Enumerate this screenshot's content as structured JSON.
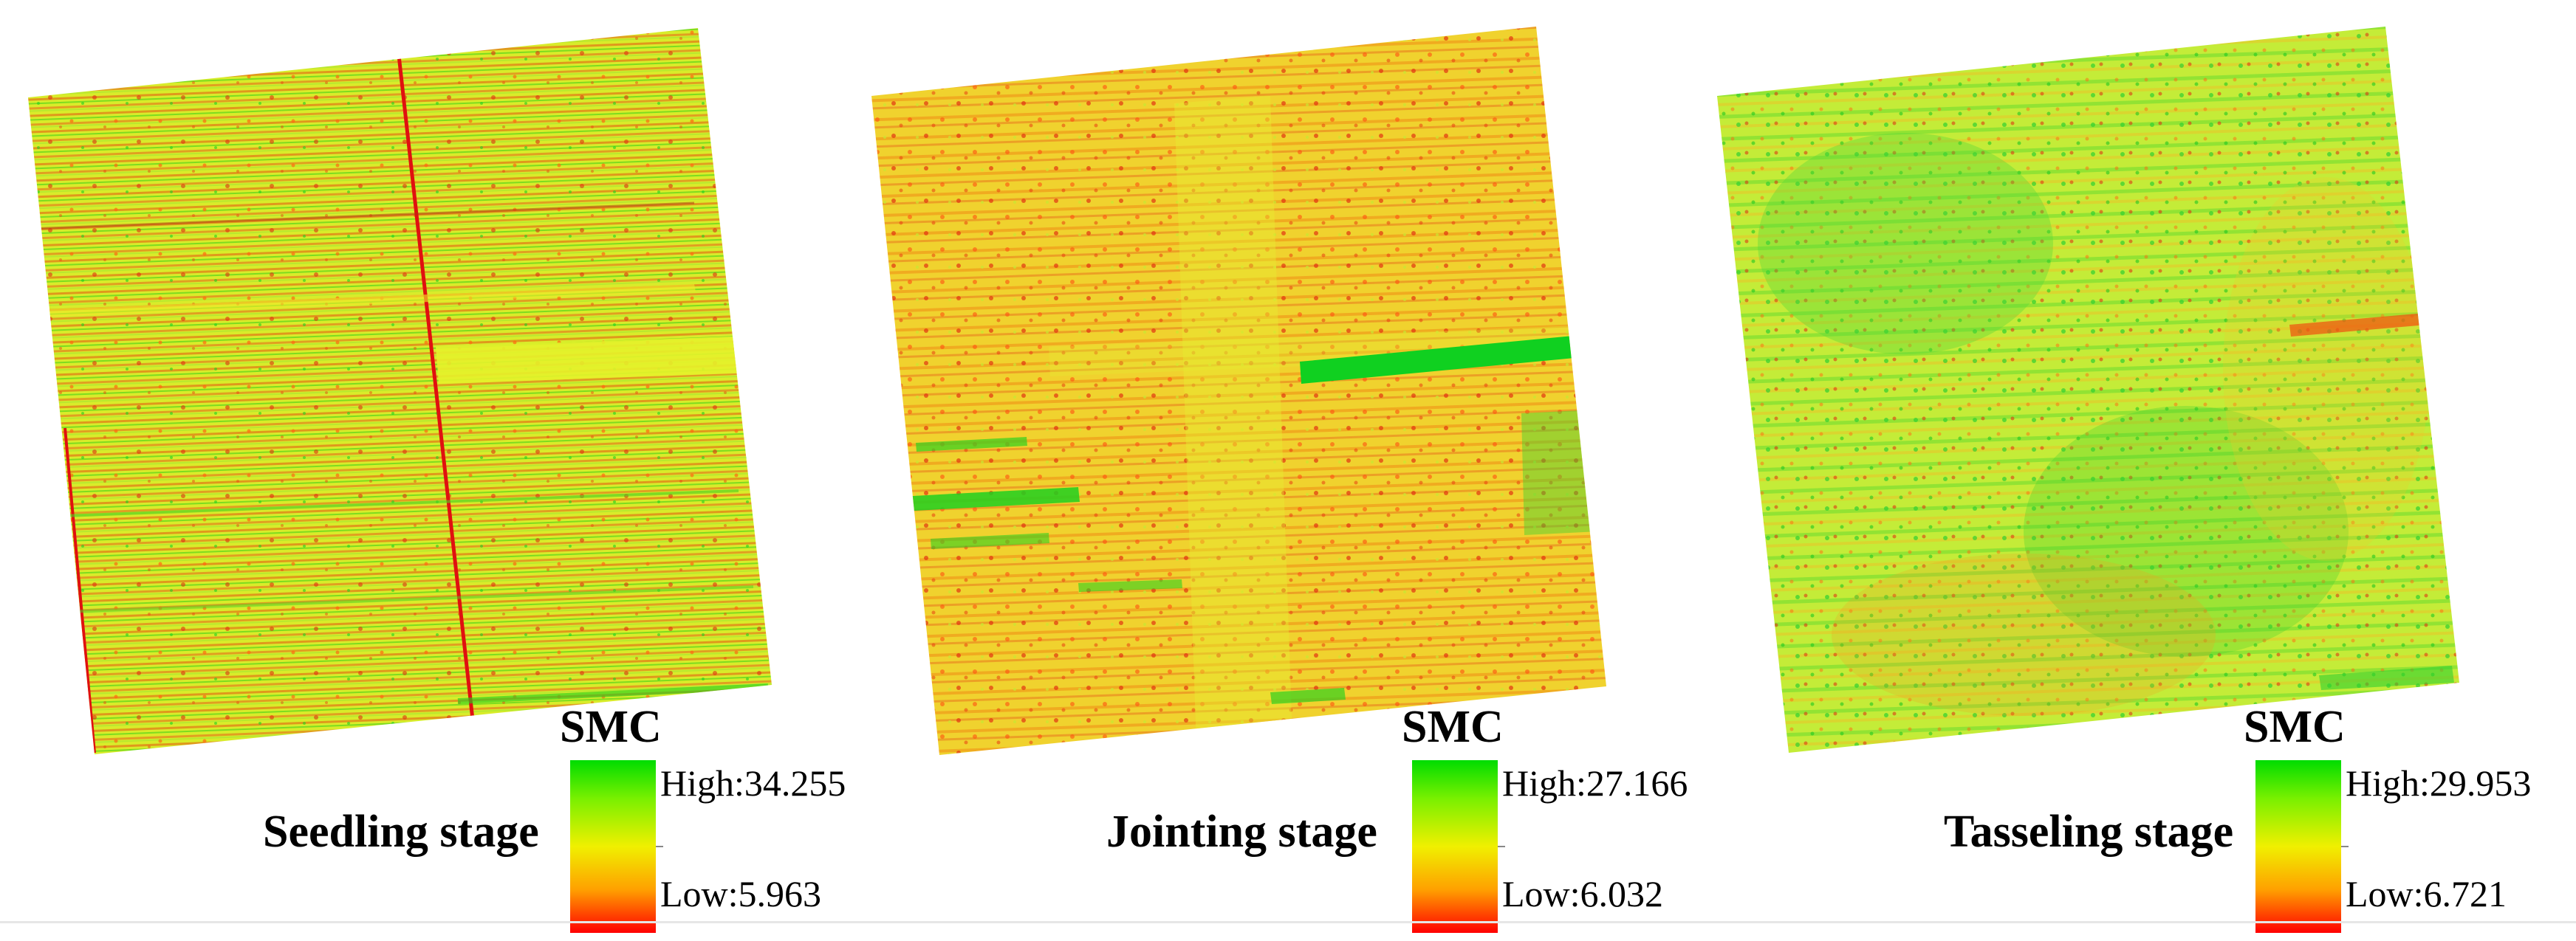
{
  "panels": [
    {
      "stage": "Seedling stage",
      "legend_title": "SMC",
      "high_label": "High:34.255",
      "low_label": "Low:5.963",
      "pattern": "rows",
      "base_color": "#d8ec2a"
    },
    {
      "stage": "Jointing stage",
      "legend_title": "SMC",
      "high_label": "High:27.166",
      "low_label": "Low:6.032",
      "pattern": "speckle-warm",
      "base_color": "#f0d22e"
    },
    {
      "stage": "Tasseling stage",
      "legend_title": "SMC",
      "high_label": "High:29.953",
      "low_label": "Low:6.721",
      "pattern": "speckle-green",
      "base_color": "#c4ec38"
    }
  ],
  "colors": {
    "high": "#00dc00",
    "mid": "#f0f000",
    "low": "#ff0000"
  }
}
